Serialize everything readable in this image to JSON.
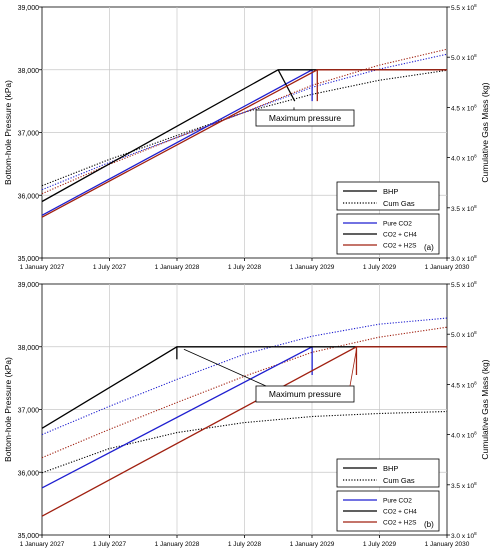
{
  "chart_data": [
    {
      "type": "line",
      "panel_label": "(a)",
      "ylabel": "Bottom-hole Pressure (kPa)",
      "y2label": "Cumulative Gas Mass (kg)",
      "ylim": [
        35000,
        39000
      ],
      "y2lim": [
        300000000.0,
        550000000.0
      ],
      "xlim": [
        "2027-01-01",
        "2030-01-01"
      ],
      "x_ticks": [
        "1 January 2027",
        "1 July 2027",
        "1 January 2028",
        "1 July 2028",
        "1 January 2029",
        "1 July 2029",
        "1 January 2030"
      ],
      "y_ticks": [
        "35,000",
        "36,000",
        "37,000",
        "38,000",
        "39,000"
      ],
      "y2_ticks": [
        {
          "mant": "3.0 x 10",
          "exp": "8"
        },
        {
          "mant": "3.5 x 10",
          "exp": "8"
        },
        {
          "mant": "4.0 x 10",
          "exp": "8"
        },
        {
          "mant": "4.5 x 10",
          "exp": "8"
        },
        {
          "mant": "5.0 x 10",
          "exp": "8"
        },
        {
          "mant": "5.5 x 10",
          "exp": "8"
        }
      ],
      "grid": true,
      "annotation": {
        "text": "Maximum pressure"
      },
      "legend_style": {
        "position": "bottom-right",
        "entries": [
          "BHP",
          "Cum Gas"
        ]
      },
      "legend_case": {
        "entries": [
          "Pure CO2",
          "CO2 + CH4",
          "CO2 + H2S"
        ]
      },
      "series": [
        {
          "name": "Pure CO2",
          "color": "#1f1fd0",
          "bhp": [
            [
              "2027-01-01",
              35680
            ],
            [
              "2029-01-01",
              38000
            ]
          ],
          "bhp_drop": [
            "2029-01-01",
            37500
          ],
          "cum": [
            [
              "2027-01-01",
              368000000.0
            ],
            [
              "2027-07-01",
              395000000.0
            ],
            [
              "2028-01-01",
              420000000.0
            ],
            [
              "2028-07-01",
              445000000.0
            ],
            [
              "2029-01-01",
              470000000.0
            ],
            [
              "2029-07-01",
              488000000.0
            ],
            [
              "2030-01-01",
              503000000.0
            ]
          ]
        },
        {
          "name": "CO2 + CH4",
          "color": "#000000",
          "bhp": [
            [
              "2027-01-01",
              35900
            ],
            [
              "2028-10-01",
              38000
            ],
            [
              "2030-01-01",
              38000
            ]
          ],
          "bhp_drop": [
            "2028-11-15",
            37500
          ],
          "cum": [
            [
              "2027-01-01",
              372000000.0
            ],
            [
              "2027-07-01",
              398000000.0
            ],
            [
              "2028-01-01",
              422000000.0
            ],
            [
              "2028-07-01",
              445000000.0
            ],
            [
              "2029-01-01",
              463000000.0
            ],
            [
              "2029-07-01",
              477000000.0
            ],
            [
              "2030-01-01",
              487000000.0
            ]
          ]
        },
        {
          "name": "CO2 + H2S",
          "color": "#a02010",
          "bhp": [
            [
              "2027-01-01",
              35650
            ],
            [
              "2029-01-15",
              38000
            ],
            [
              "2030-01-01",
              38000
            ]
          ],
          "bhp_drop": [
            "2029-01-15",
            37500
          ],
          "cum": [
            [
              "2027-01-01",
              364000000.0
            ],
            [
              "2027-07-01",
              393000000.0
            ],
            [
              "2028-01-01",
              420000000.0
            ],
            [
              "2028-07-01",
              445000000.0
            ],
            [
              "2029-01-01",
              472000000.0
            ],
            [
              "2029-07-01",
              492000000.0
            ],
            [
              "2030-01-01",
              508000000.0
            ]
          ]
        }
      ]
    },
    {
      "type": "line",
      "panel_label": "(b)",
      "ylabel": "Bottom-hole Pressure (kPa)",
      "y2label": "Cumulative Gas Mass (kg)",
      "ylim": [
        35000,
        39000
      ],
      "y2lim": [
        300000000.0,
        550000000.0
      ],
      "xlim": [
        "2027-01-01",
        "2030-01-01"
      ],
      "x_ticks": [
        "1 January 2027",
        "1 July 2027",
        "1 January 2028",
        "1 July 2028",
        "1 January 2029",
        "1 July 2029",
        "1 January 2030"
      ],
      "y_ticks": [
        "35,000",
        "36,000",
        "37,000",
        "38,000",
        "39,000"
      ],
      "y2_ticks": [
        {
          "mant": "3.0 x 10",
          "exp": "8"
        },
        {
          "mant": "3.5 x 10",
          "exp": "8"
        },
        {
          "mant": "4.0 x 10",
          "exp": "8"
        },
        {
          "mant": "4.5 x 10",
          "exp": "8"
        },
        {
          "mant": "5.0 x 10",
          "exp": "8"
        },
        {
          "mant": "5.5 x 10",
          "exp": "8"
        }
      ],
      "grid": true,
      "annotation": {
        "text": "Maximum pressure"
      },
      "legend_style": {
        "position": "bottom-right",
        "entries": [
          "BHP",
          "Cum Gas"
        ]
      },
      "legend_case": {
        "entries": [
          "Pure CO2",
          "CO2 + CH4",
          "CO2 + H2S"
        ]
      },
      "series": [
        {
          "name": "Pure CO2",
          "color": "#1f1fd0",
          "bhp": [
            [
              "2027-01-01",
              35750
            ],
            [
              "2029-01-01",
              38000
            ]
          ],
          "bhp_drop": [
            "2029-01-01",
            37550
          ],
          "cum": [
            [
              "2027-01-01",
              400000000.0
            ],
            [
              "2027-07-01",
              428000000.0
            ],
            [
              "2028-01-01",
              455000000.0
            ],
            [
              "2028-07-01",
              480000000.0
            ],
            [
              "2029-01-01",
              498000000.0
            ],
            [
              "2029-07-01",
              510000000.0
            ],
            [
              "2030-01-01",
              516000000.0
            ]
          ]
        },
        {
          "name": "CO2 + CH4",
          "color": "#000000",
          "bhp": [
            [
              "2027-01-01",
              36700
            ],
            [
              "2028-01-01",
              38000
            ],
            [
              "2030-01-01",
              38000
            ]
          ],
          "bhp_drop": [
            "2028-01-01",
            37800
          ],
          "cum": [
            [
              "2027-01-01",
              362000000.0
            ],
            [
              "2027-07-01",
              386000000.0
            ],
            [
              "2028-01-01",
              402000000.0
            ],
            [
              "2028-07-01",
              412000000.0
            ],
            [
              "2029-01-01",
              418000000.0
            ],
            [
              "2029-07-01",
              421000000.0
            ],
            [
              "2030-01-01",
              423000000.0
            ]
          ]
        },
        {
          "name": "CO2 + H2S",
          "color": "#a02010",
          "bhp": [
            [
              "2027-01-01",
              35300
            ],
            [
              "2029-05-01",
              38000
            ],
            [
              "2030-01-01",
              38000
            ]
          ],
          "bhp_drop": [
            "2029-05-01",
            37550
          ],
          "cum": [
            [
              "2027-01-01",
              377000000.0
            ],
            [
              "2027-07-01",
              405000000.0
            ],
            [
              "2028-01-01",
              432000000.0
            ],
            [
              "2028-07-01",
              458000000.0
            ],
            [
              "2029-01-01",
              482000000.0
            ],
            [
              "2029-07-01",
              497000000.0
            ],
            [
              "2030-01-01",
              507000000.0
            ]
          ]
        }
      ]
    }
  ]
}
